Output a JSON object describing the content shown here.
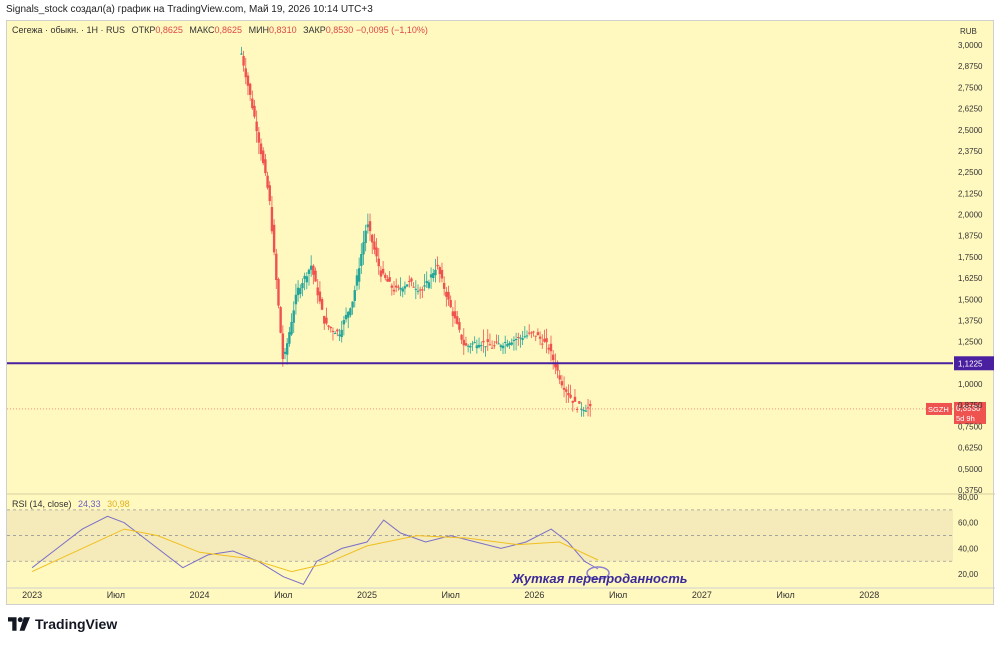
{
  "header": {
    "text": "Signals_stock создал(а) график на TradingView.com, Май 19, 2026 10:14 UTC+3"
  },
  "legend": {
    "symbol": "Сегежа · обыкн. · 1Н · RUS",
    "open_label": "ОТКР",
    "open": "0,8625",
    "high_label": "МАКС",
    "high": "0,8625",
    "low_label": "МИН",
    "low": "0,8310",
    "close_label": "ЗАКР",
    "close": "0,8530",
    "change": "−0,0095 (−1,10%)"
  },
  "colors": {
    "background": "#fff8bf",
    "up": "#26a69a",
    "down": "#ef5350",
    "level": "#4a1fa0",
    "rsi": "#7b6fc9",
    "rsi_ma": "#f0c020"
  },
  "chart_data": [
    {
      "type": "candlestick",
      "currency": "RUB",
      "ylim": [
        0.375,
        3.0
      ],
      "y_ticks": [
        "3,0000",
        "2,8750",
        "2,7500",
        "2,6250",
        "2,5000",
        "2,3750",
        "2,2500",
        "2,1250",
        "2,0000",
        "1,8750",
        "1,7500",
        "1,6250",
        "1,5000",
        "1,3750",
        "1,2500",
        "1,1225",
        "1,0000",
        "0,8750",
        "0,7500",
        "0,6250",
        "0,5000",
        "0,3750"
      ],
      "x_ticks": [
        "2023",
        "Июл",
        "2024",
        "Июл",
        "2025",
        "Июл",
        "2026",
        "Июл",
        "2027",
        "Июл",
        "2028"
      ],
      "horizontal_level": {
        "value": 1.1225,
        "label": "1,1225"
      },
      "last_price": {
        "ticker": "SGZH",
        "value": 0.853,
        "label": "0,8530",
        "countdown": "5d 9h"
      },
      "approximate_close_path": [
        [
          "2024-04",
          2.95
        ],
        [
          "2024-05",
          2.55
        ],
        [
          "2024-06",
          2.1
        ],
        [
          "2024-07",
          1.12
        ],
        [
          "2024-08",
          1.55
        ],
        [
          "2024-09",
          1.7
        ],
        [
          "2024-10",
          1.35
        ],
        [
          "2024-11",
          1.3
        ],
        [
          "2024-12",
          1.5
        ],
        [
          "2025-01",
          1.95
        ],
        [
          "2025-02",
          1.65
        ],
        [
          "2025-03",
          1.55
        ],
        [
          "2025-04",
          1.6
        ],
        [
          "2025-05",
          1.55
        ],
        [
          "2025-06",
          1.7
        ],
        [
          "2025-07",
          1.45
        ],
        [
          "2025-08",
          1.22
        ],
        [
          "2025-09",
          1.25
        ],
        [
          "2025-10",
          1.22
        ],
        [
          "2025-11",
          1.25
        ],
        [
          "2026-01",
          1.3
        ],
        [
          "2026-02",
          1.22
        ],
        [
          "2026-03",
          1.0
        ],
        [
          "2026-04",
          0.87
        ],
        [
          "2026-05",
          0.853
        ]
      ]
    },
    {
      "type": "line",
      "title": "RSI (14, close)",
      "rsi_value": "24,33",
      "rsi_ma_value": "30,98",
      "ylim": [
        10,
        80
      ],
      "y_ticks": [
        "80,00",
        "60,00",
        "40,00",
        "20,00"
      ],
      "bands": [
        70,
        50,
        30
      ],
      "series": [
        {
          "values": [
            [
              2023.0,
              25
            ],
            [
              2023.15,
              40
            ],
            [
              2023.3,
              55
            ],
            [
              2023.45,
              65
            ],
            [
              2023.55,
              60
            ],
            [
              2023.7,
              45
            ],
            [
              2023.9,
              25
            ],
            [
              2024.05,
              35
            ],
            [
              2024.2,
              38
            ],
            [
              2024.35,
              30
            ],
            [
              2024.5,
              18
            ],
            [
              2024.62,
              12
            ],
            [
              2024.7,
              30
            ],
            [
              2024.85,
              40
            ],
            [
              2025.0,
              45
            ],
            [
              2025.1,
              62
            ],
            [
              2025.2,
              52
            ],
            [
              2025.35,
              45
            ],
            [
              2025.5,
              50
            ],
            [
              2025.65,
              45
            ],
            [
              2025.8,
              40
            ],
            [
              2025.95,
              45
            ],
            [
              2026.1,
              55
            ],
            [
              2026.2,
              45
            ],
            [
              2026.3,
              30
            ],
            [
              2026.38,
              24
            ]
          ]
        },
        {
          "values": [
            [
              2023.0,
              22
            ],
            [
              2023.3,
              40
            ],
            [
              2023.55,
              55
            ],
            [
              2023.75,
              50
            ],
            [
              2024.0,
              37
            ],
            [
              2024.3,
              32
            ],
            [
              2024.55,
              22
            ],
            [
              2024.75,
              28
            ],
            [
              2025.0,
              42
            ],
            [
              2025.3,
              50
            ],
            [
              2025.6,
              48
            ],
            [
              2025.9,
              43
            ],
            [
              2026.15,
              45
            ],
            [
              2026.38,
              31
            ]
          ]
        }
      ],
      "annotation": "Жуткая перепроданность"
    }
  ],
  "footer": {
    "brand": "TradingView"
  }
}
